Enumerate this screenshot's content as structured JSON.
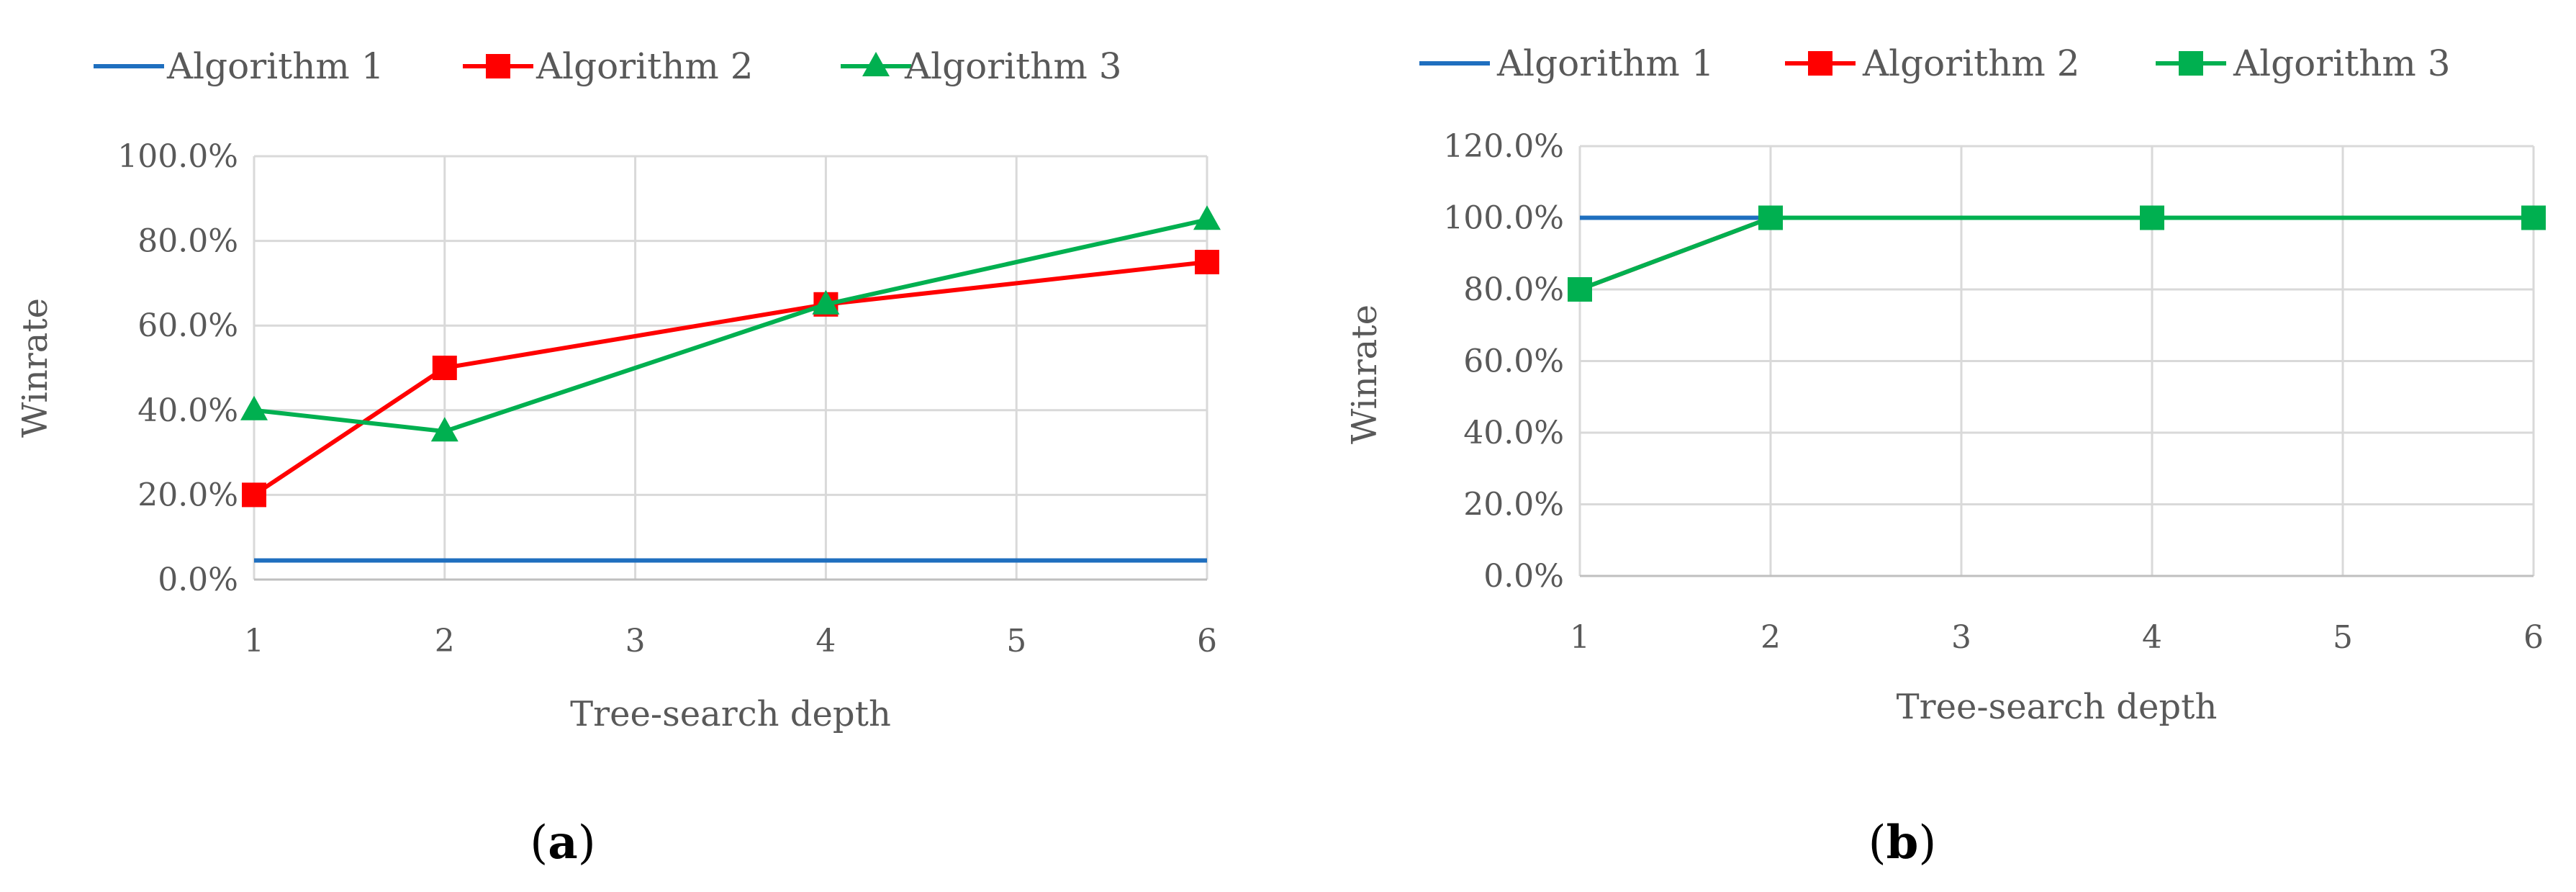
{
  "chart_data": [
    {
      "type": "line",
      "caption": {
        "open": "(",
        "letter": "a",
        "close": ")"
      },
      "x": [
        1,
        2,
        3,
        4,
        5,
        6
      ],
      "xlabel": "Tree-search depth",
      "ylabel": "Winrate",
      "ylim": [
        0,
        1
      ],
      "yticks": [
        "0.0%",
        "20.0%",
        "40.0%",
        "60.0%",
        "80.0%",
        "100.0%"
      ],
      "grid": true,
      "legend": "top-left",
      "series": [
        {
          "name": "Algorithm 1",
          "color": "#1F6FBF",
          "marker": "none",
          "points": [
            [
              1,
              0.045
            ],
            [
              6,
              0.045
            ]
          ]
        },
        {
          "name": "Algorithm 2",
          "color": "#FF0000",
          "marker": "square",
          "points": [
            [
              1,
              0.2
            ],
            [
              2,
              0.5
            ],
            [
              4,
              0.65
            ],
            [
              6,
              0.75
            ]
          ]
        },
        {
          "name": "Algorithm 3",
          "color": "#00B050",
          "marker": "triangle",
          "points": [
            [
              1,
              0.4
            ],
            [
              2,
              0.35
            ],
            [
              4,
              0.65
            ],
            [
              6,
              0.85
            ]
          ]
        }
      ]
    },
    {
      "type": "line",
      "caption": {
        "open": "(",
        "letter": "b",
        "close": ")"
      },
      "x": [
        1,
        2,
        3,
        4,
        5,
        6
      ],
      "xlabel": "Tree-search depth",
      "ylabel": "Winrate",
      "ylim": [
        0,
        1.2
      ],
      "yticks": [
        "0.0%",
        "20.0%",
        "40.0%",
        "60.0%",
        "80.0%",
        "100.0%",
        "120.0%"
      ],
      "grid": true,
      "legend": "top-left",
      "series": [
        {
          "name": "Algorithm 1",
          "color": "#1F6FBF",
          "marker": "none",
          "points": [
            [
              1,
              1.0
            ],
            [
              2,
              1.0
            ]
          ]
        },
        {
          "name": "Algorithm 2",
          "color": "#FF0000",
          "marker": "square",
          "points": [
            [
              1,
              0.8
            ],
            [
              2,
              1.0
            ],
            [
              4,
              1.0
            ],
            [
              6,
              1.0
            ]
          ]
        },
        {
          "name": "Algorithm 3",
          "color": "#00B050",
          "marker": "square",
          "points": [
            [
              1,
              0.8
            ],
            [
              2,
              1.0
            ],
            [
              4,
              1.0
            ],
            [
              6,
              1.0
            ]
          ]
        }
      ]
    }
  ]
}
